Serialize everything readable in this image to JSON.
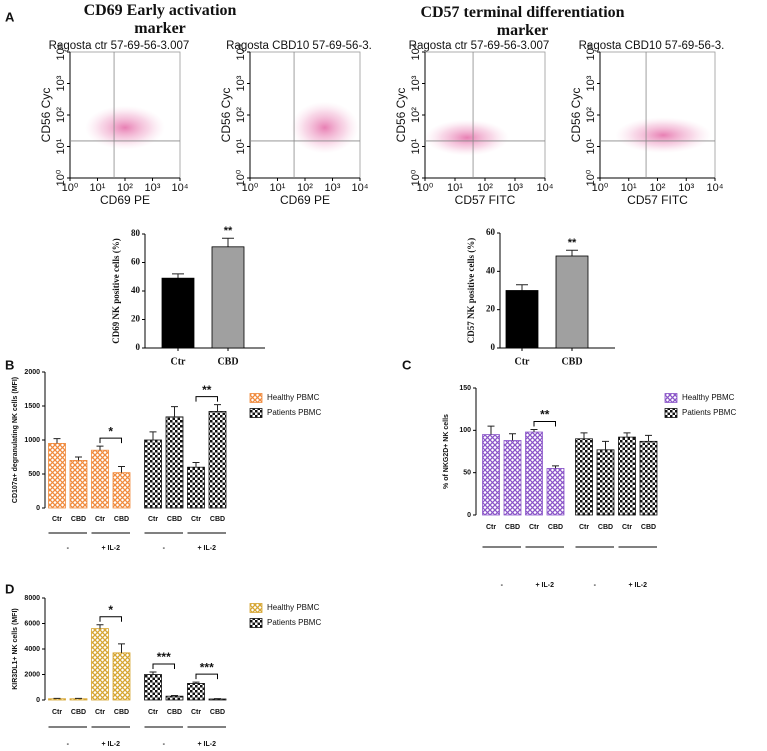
{
  "chart_data": [
    {
      "type": "flow",
      "panel": "A",
      "heading": "CD69 Early activation marker",
      "title": "Ragosta ctr 57-69-56-3.007",
      "xlabel": "CD69 PE",
      "ylabel": "CD56 Cyc",
      "log": true,
      "xlim": [
        1,
        10000
      ],
      "ylim": [
        1,
        10000
      ],
      "xticks": [
        {
          "value": 1,
          "label": "10⁰"
        },
        {
          "value": 10,
          "label": "10¹"
        },
        {
          "value": 100,
          "label": "10²"
        },
        {
          "value": 1000,
          "label": "10³"
        },
        {
          "value": 10000,
          "label": "10⁴"
        }
      ],
      "yticks": [
        {
          "value": 1,
          "label": "10⁰"
        },
        {
          "value": 10,
          "label": "10¹"
        },
        {
          "value": 100,
          "label": "10²"
        },
        {
          "value": 1000,
          "label": "10³"
        },
        {
          "value": 10000,
          "label": "10⁴"
        }
      ],
      "gate": [
        40,
        15
      ]
    },
    {
      "type": "flow",
      "title": "Ragosta CBD10 57-69-56-3.",
      "xlabel": "CD69 PE",
      "ylabel": "CD56 Cyc",
      "log": true,
      "xlim": [
        1,
        10000
      ],
      "ylim": [
        1,
        10000
      ],
      "xticks": [
        {
          "value": 1,
          "label": "10⁰"
        },
        {
          "value": 10,
          "label": "10¹"
        },
        {
          "value": 100,
          "label": "10²"
        },
        {
          "value": 1000,
          "label": "10³"
        },
        {
          "value": 10000,
          "label": "10⁴"
        }
      ],
      "yticks": [
        {
          "value": 1,
          "label": "10⁰"
        },
        {
          "value": 10,
          "label": "10¹"
        },
        {
          "value": 100,
          "label": "10²"
        },
        {
          "value": 1000,
          "label": "10³"
        },
        {
          "value": 10000,
          "label": "10⁴"
        }
      ],
      "gate": [
        40,
        15
      ]
    },
    {
      "type": "flow",
      "heading": "CD57 terminal differentiation marker",
      "title": "Ragosta ctr 57-69-56-3.007",
      "xlabel": "CD57 FITC",
      "ylabel": "CD56 Cyc",
      "log": true,
      "xlim": [
        1,
        10000
      ],
      "ylim": [
        1,
        10000
      ],
      "xticks": [
        {
          "value": 1,
          "label": "10⁰"
        },
        {
          "value": 10,
          "label": "10¹"
        },
        {
          "value": 100,
          "label": "10²"
        },
        {
          "value": 1000,
          "label": "10³"
        },
        {
          "value": 10000,
          "label": "10⁴"
        }
      ],
      "yticks": [
        {
          "value": 1,
          "label": "10⁰"
        },
        {
          "value": 10,
          "label": "10¹"
        },
        {
          "value": 100,
          "label": "10²"
        },
        {
          "value": 1000,
          "label": "10³"
        },
        {
          "value": 10000,
          "label": "10⁴"
        }
      ],
      "gate": [
        40,
        15
      ]
    },
    {
      "type": "flow",
      "title": "Ragosta CBD10 57-69-56-3.",
      "xlabel": "CD57 FITC",
      "ylabel": "CD56 Cyc",
      "log": true,
      "xlim": [
        1,
        10000
      ],
      "ylim": [
        1,
        10000
      ],
      "xticks": [
        {
          "value": 1,
          "label": "10⁰"
        },
        {
          "value": 10,
          "label": "10¹"
        },
        {
          "value": 100,
          "label": "10²"
        },
        {
          "value": 1000,
          "label": "10³"
        },
        {
          "value": 10000,
          "label": "10⁴"
        }
      ],
      "yticks": [
        {
          "value": 1,
          "label": "10⁰"
        },
        {
          "value": 10,
          "label": "10¹"
        },
        {
          "value": 100,
          "label": "10²"
        },
        {
          "value": 1000,
          "label": "10³"
        },
        {
          "value": 10000,
          "label": "10⁴"
        }
      ],
      "gate": [
        40,
        15
      ]
    },
    {
      "type": "bar",
      "ylabel": "CD69 NK positive cells (%)",
      "categories": [
        "Ctr",
        "CBD"
      ],
      "values": [
        49,
        71
      ],
      "errors": [
        3,
        6
      ],
      "colors": [
        "#000000",
        "#a0a0a0"
      ],
      "ylim": [
        0,
        80
      ],
      "yticks": [
        0,
        20,
        40,
        60,
        80
      ],
      "annotations": [
        {
          "text": "**",
          "bars": [
            1
          ]
        }
      ]
    },
    {
      "type": "bar",
      "ylabel": "CD57 NK positive cells (%)",
      "categories": [
        "Ctr",
        "CBD"
      ],
      "values": [
        30,
        48
      ],
      "errors": [
        3,
        3
      ],
      "colors": [
        "#000000",
        "#a0a0a0"
      ],
      "ylim": [
        0,
        60
      ],
      "yticks": [
        0,
        20,
        40,
        60
      ],
      "annotations": [
        {
          "text": "**",
          "bars": [
            1
          ]
        }
      ]
    },
    {
      "type": "grouped_bar",
      "panel": "B",
      "ylabel": "CD107a+ degranulating NK cells (MFI)",
      "categories": [
        "Ctr",
        "CBD",
        "Ctr",
        "CBD",
        "Ctr",
        "CBD",
        "Ctr",
        "CBD"
      ],
      "groups": [
        "-",
        "+ IL-2",
        "-",
        "+ IL-2"
      ],
      "ylim": [
        0,
        2000
      ],
      "yticks": [
        0,
        500,
        1000,
        1500,
        2000
      ],
      "series": [
        {
          "name": "Healthy PBMC",
          "color": "#f08a3c",
          "pattern": "hatch",
          "values": [
            950,
            700,
            850,
            520,
            null,
            null,
            null,
            null
          ],
          "errors": [
            70,
            50,
            60,
            90,
            null,
            null,
            null,
            null
          ]
        },
        {
          "name": "Patients PBMC",
          "color": "#111111",
          "pattern": "checker",
          "values": [
            null,
            null,
            null,
            null,
            1000,
            1340,
            600,
            1420
          ],
          "errors": [
            null,
            null,
            null,
            null,
            120,
            150,
            70,
            100
          ]
        }
      ],
      "annotations": [
        {
          "text": "*",
          "bars": [
            2,
            3
          ]
        },
        {
          "text": "**",
          "bars": [
            6,
            7
          ]
        }
      ]
    },
    {
      "type": "grouped_bar",
      "panel": "C",
      "ylabel": "% of NKG2D+ NK cells",
      "categories": [
        "Ctr",
        "CBD",
        "Ctr",
        "CBD",
        "Ctr",
        "CBD",
        "Ctr",
        "CBD"
      ],
      "groups": [
        "-",
        "+ IL-2",
        "-",
        "+ IL-2"
      ],
      "ylim": [
        0,
        150
      ],
      "yticks": [
        0,
        50,
        100,
        150
      ],
      "series": [
        {
          "name": "Healthy PBMC",
          "color": "#8a55c8",
          "pattern": "hatch",
          "values": [
            95,
            88,
            98,
            55,
            null,
            null,
            null,
            null
          ],
          "errors": [
            10,
            8,
            3,
            3,
            null,
            null,
            null,
            null
          ]
        },
        {
          "name": "Patients PBMC",
          "color": "#111111",
          "pattern": "checker",
          "values": [
            null,
            null,
            null,
            null,
            90,
            77,
            92,
            87
          ],
          "errors": [
            null,
            null,
            null,
            null,
            7,
            10,
            5,
            7
          ]
        }
      ],
      "annotations": [
        {
          "text": "**",
          "bars": [
            2,
            3
          ]
        }
      ]
    },
    {
      "type": "grouped_bar",
      "panel": "D",
      "ylabel": "KIR3DL1+ NK cells (MFI)",
      "categories": [
        "Ctr",
        "CBD",
        "Ctr",
        "CBD",
        "Ctr",
        "CBD",
        "Ctr",
        "CBD"
      ],
      "groups": [
        "-",
        "+ IL-2",
        "-",
        "+ IL-2"
      ],
      "ylim": [
        0,
        8000
      ],
      "yticks": [
        0,
        2000,
        4000,
        6000,
        8000
      ],
      "series": [
        {
          "name": "Healthy PBMC",
          "color": "#d6a531",
          "pattern": "hatch",
          "values": [
            100,
            100,
            5600,
            3700,
            null,
            null,
            null,
            null
          ],
          "errors": [
            30,
            30,
            300,
            700,
            null,
            null,
            null,
            null
          ]
        },
        {
          "name": "Patients PBMC",
          "color": "#111111",
          "pattern": "checker",
          "values": [
            null,
            null,
            null,
            null,
            2000,
            300,
            1300,
            80
          ],
          "errors": [
            null,
            null,
            null,
            null,
            200,
            50,
            100,
            30
          ]
        }
      ],
      "annotations": [
        {
          "text": "*",
          "bars": [
            2,
            3
          ]
        },
        {
          "text": "***",
          "bars": [
            4,
            5
          ]
        },
        {
          "text": "***",
          "bars": [
            6,
            7
          ]
        }
      ]
    }
  ]
}
